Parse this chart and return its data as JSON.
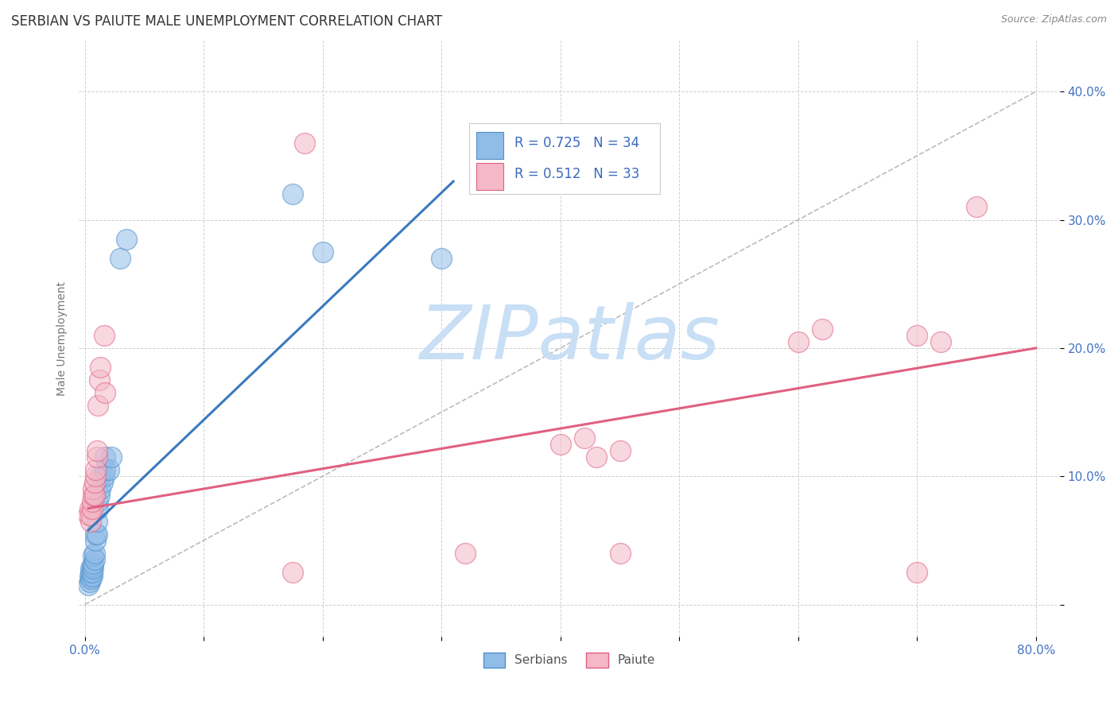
{
  "title": "SERBIAN VS PAIUTE MALE UNEMPLOYMENT CORRELATION CHART",
  "source": "Source: ZipAtlas.com",
  "ylabel": "Male Unemployment",
  "xlim": [
    -0.005,
    0.82
  ],
  "ylim": [
    -0.025,
    0.44
  ],
  "xticks": [
    0.0,
    0.1,
    0.2,
    0.3,
    0.4,
    0.5,
    0.6,
    0.7,
    0.8
  ],
  "xticklabels": [
    "0.0%",
    "",
    "",
    "",
    "",
    "",
    "",
    "",
    "80.0%"
  ],
  "yticks": [
    0.0,
    0.1,
    0.2,
    0.3,
    0.4
  ],
  "yticklabels_right": [
    "",
    "10.0%",
    "20.0%",
    "30.0%",
    "40.0%"
  ],
  "legend_series": [
    {
      "label": "Serbians",
      "color": "#a8c8f0",
      "R": 0.725,
      "N": 34
    },
    {
      "label": "Paiute",
      "color": "#f4b8c8",
      "R": 0.512,
      "N": 33
    }
  ],
  "watermark": "ZIPatlas",
  "serbian_scatter": [
    [
      0.003,
      0.015
    ],
    [
      0.004,
      0.018
    ],
    [
      0.004,
      0.022
    ],
    [
      0.005,
      0.02
    ],
    [
      0.005,
      0.025
    ],
    [
      0.005,
      0.028
    ],
    [
      0.006,
      0.022
    ],
    [
      0.006,
      0.025
    ],
    [
      0.006,
      0.03
    ],
    [
      0.007,
      0.028
    ],
    [
      0.007,
      0.032
    ],
    [
      0.007,
      0.038
    ],
    [
      0.008,
      0.035
    ],
    [
      0.008,
      0.04
    ],
    [
      0.009,
      0.05
    ],
    [
      0.009,
      0.055
    ],
    [
      0.01,
      0.055
    ],
    [
      0.01,
      0.065
    ],
    [
      0.011,
      0.075
    ],
    [
      0.011,
      0.08
    ],
    [
      0.012,
      0.085
    ],
    [
      0.013,
      0.09
    ],
    [
      0.013,
      0.1
    ],
    [
      0.015,
      0.095
    ],
    [
      0.016,
      0.1
    ],
    [
      0.017,
      0.105
    ],
    [
      0.017,
      0.115
    ],
    [
      0.02,
      0.105
    ],
    [
      0.022,
      0.115
    ],
    [
      0.03,
      0.27
    ],
    [
      0.035,
      0.285
    ],
    [
      0.175,
      0.32
    ],
    [
      0.2,
      0.275
    ],
    [
      0.3,
      0.27
    ]
  ],
  "paiute_scatter": [
    [
      0.003,
      0.07
    ],
    [
      0.004,
      0.075
    ],
    [
      0.005,
      0.065
    ],
    [
      0.005,
      0.07
    ],
    [
      0.006,
      0.075
    ],
    [
      0.006,
      0.08
    ],
    [
      0.007,
      0.085
    ],
    [
      0.007,
      0.09
    ],
    [
      0.008,
      0.085
    ],
    [
      0.008,
      0.095
    ],
    [
      0.009,
      0.1
    ],
    [
      0.009,
      0.105
    ],
    [
      0.01,
      0.115
    ],
    [
      0.01,
      0.12
    ],
    [
      0.011,
      0.155
    ],
    [
      0.012,
      0.175
    ],
    [
      0.013,
      0.185
    ],
    [
      0.016,
      0.21
    ],
    [
      0.017,
      0.165
    ],
    [
      0.185,
      0.36
    ],
    [
      0.4,
      0.125
    ],
    [
      0.42,
      0.13
    ],
    [
      0.43,
      0.115
    ],
    [
      0.45,
      0.12
    ],
    [
      0.6,
      0.205
    ],
    [
      0.62,
      0.215
    ],
    [
      0.7,
      0.21
    ],
    [
      0.72,
      0.205
    ],
    [
      0.75,
      0.31
    ],
    [
      0.7,
      0.025
    ],
    [
      0.32,
      0.04
    ],
    [
      0.45,
      0.04
    ],
    [
      0.175,
      0.025
    ]
  ],
  "serbian_line": {
    "x0": 0.003,
    "y0": 0.058,
    "x1": 0.31,
    "y1": 0.33
  },
  "paiute_line": {
    "x0": 0.003,
    "y0": 0.075,
    "x1": 0.8,
    "y1": 0.2
  },
  "dashed_line": {
    "x0": 0.0,
    "y0": 0.0,
    "x1": 0.8,
    "y1": 0.4
  },
  "serbian_color": "#90bce8",
  "serbian_edge_color": "#5090c8",
  "paiute_color": "#f4b8c8",
  "paiute_edge_color": "#e06080",
  "serbian_line_color": "#3a7abf",
  "paiute_line_color": "#e06080",
  "background_color": "#ffffff",
  "grid_color": "#cccccc",
  "title_color": "#333333",
  "tick_color": "#4472c4",
  "watermark_color": "#c8dff5",
  "title_fontsize": 12,
  "axis_label_fontsize": 10,
  "tick_fontsize": 11
}
